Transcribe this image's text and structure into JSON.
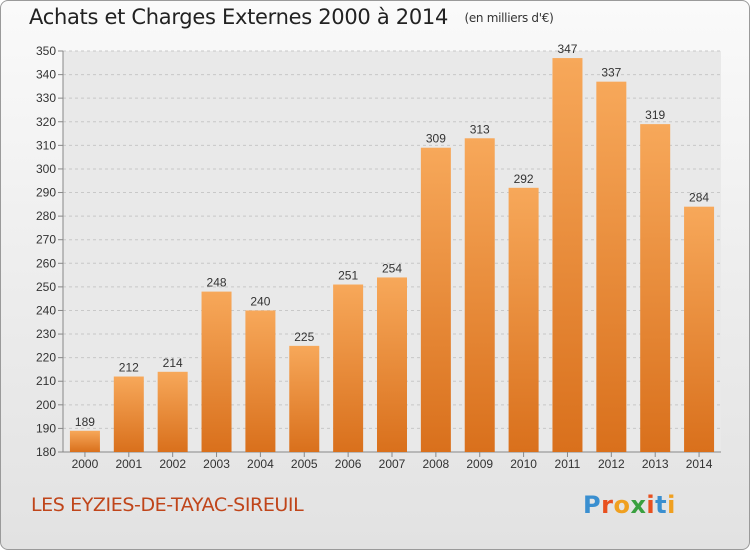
{
  "header": {
    "title": "Achats et Charges Externes 2000 à 2014",
    "subtitle": "(en milliers d'€)"
  },
  "footer": {
    "commune": "LES EYZIES-DE-TAYAC-SIREUIL",
    "logo_letters": [
      "P",
      "r",
      "o",
      "x",
      "i",
      "t",
      "i"
    ],
    "logo_colors": [
      "#3a8fd0",
      "#e8501f",
      "#f0a020",
      "#3aa040",
      "#e8501f",
      "#3a8fd0",
      "#f0a020"
    ]
  },
  "chart_data": {
    "type": "bar",
    "categories": [
      "2000",
      "2001",
      "2002",
      "2003",
      "2004",
      "2005",
      "2006",
      "2007",
      "2008",
      "2009",
      "2010",
      "2011",
      "2012",
      "2013",
      "2014"
    ],
    "values": [
      189,
      212,
      214,
      248,
      240,
      225,
      251,
      254,
      309,
      313,
      292,
      347,
      337,
      319,
      284
    ],
    "ylim": [
      180,
      350
    ],
    "yticks": [
      180,
      190,
      200,
      210,
      220,
      230,
      240,
      250,
      260,
      270,
      280,
      290,
      300,
      310,
      320,
      330,
      340,
      350
    ],
    "grid": true,
    "bar_color_top": "#f7a85a",
    "bar_color_bottom": "#d9701c"
  }
}
